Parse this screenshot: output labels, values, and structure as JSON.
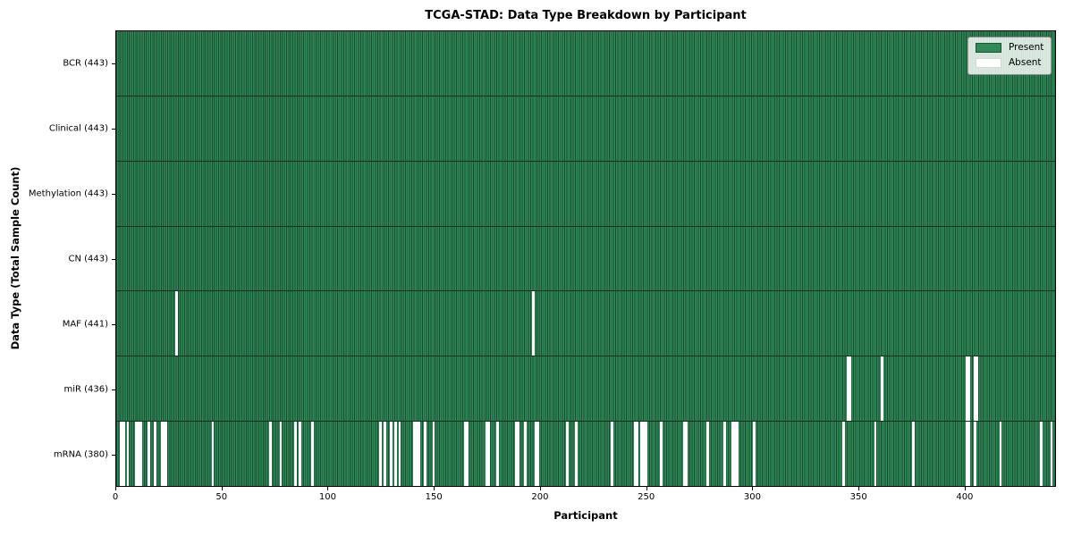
{
  "chart_data": {
    "type": "heatmap",
    "title": "TCGA-STAD: Data Type Breakdown by Participant",
    "xlabel": "Participant",
    "ylabel": "Data Type (Total Sample Count)",
    "n_participants": 443,
    "x_ticks": [
      0,
      50,
      100,
      150,
      200,
      250,
      300,
      350,
      400
    ],
    "grid": false,
    "legend_position": "upper right",
    "rows": [
      {
        "data_type": "BCR",
        "label": "BCR (443)",
        "present_count": 443,
        "absent_participants": []
      },
      {
        "data_type": "Clinical",
        "label": "Clinical (443)",
        "present_count": 443,
        "absent_participants": []
      },
      {
        "data_type": "Methylation",
        "label": "Methylation (443)",
        "present_count": 443,
        "absent_participants": []
      },
      {
        "data_type": "CN",
        "label": "CN (443)",
        "present_count": 443,
        "absent_participants": []
      },
      {
        "data_type": "MAF",
        "label": "MAF (441)",
        "present_count": 441,
        "absent_participants": [
          28,
          196
        ]
      },
      {
        "data_type": "miR",
        "label": "miR (436)",
        "present_count": 436,
        "absent_participants": [
          344,
          345,
          360,
          400,
          401,
          404,
          405
        ]
      },
      {
        "data_type": "mRNA",
        "label": "mRNA (380)",
        "present_count": 380,
        "absent_participants": [
          2,
          3,
          5,
          9,
          10,
          11,
          15,
          18,
          21,
          22,
          23,
          45,
          72,
          77,
          84,
          86,
          92,
          124,
          126,
          129,
          131,
          133,
          140,
          141,
          142,
          145,
          149,
          164,
          165,
          174,
          175,
          179,
          188,
          189,
          192,
          197,
          198,
          212,
          216,
          233,
          244,
          245,
          247,
          248,
          249,
          256,
          267,
          268,
          278,
          286,
          290,
          291,
          292,
          300,
          342,
          357,
          375,
          400,
          401,
          404,
          416,
          435,
          440
        ]
      }
    ],
    "legend": {
      "entries": [
        {
          "label": "Present",
          "color": "#2e8b57",
          "edge": "#1c5434"
        },
        {
          "label": "Absent",
          "color": "#ffffff",
          "edge": "#d8d8d8"
        }
      ]
    },
    "colors": {
      "present": "#2e8b57",
      "present_stripe_dark": "#1a4a30",
      "absent": "#ffffff",
      "axis": "#000000"
    }
  }
}
